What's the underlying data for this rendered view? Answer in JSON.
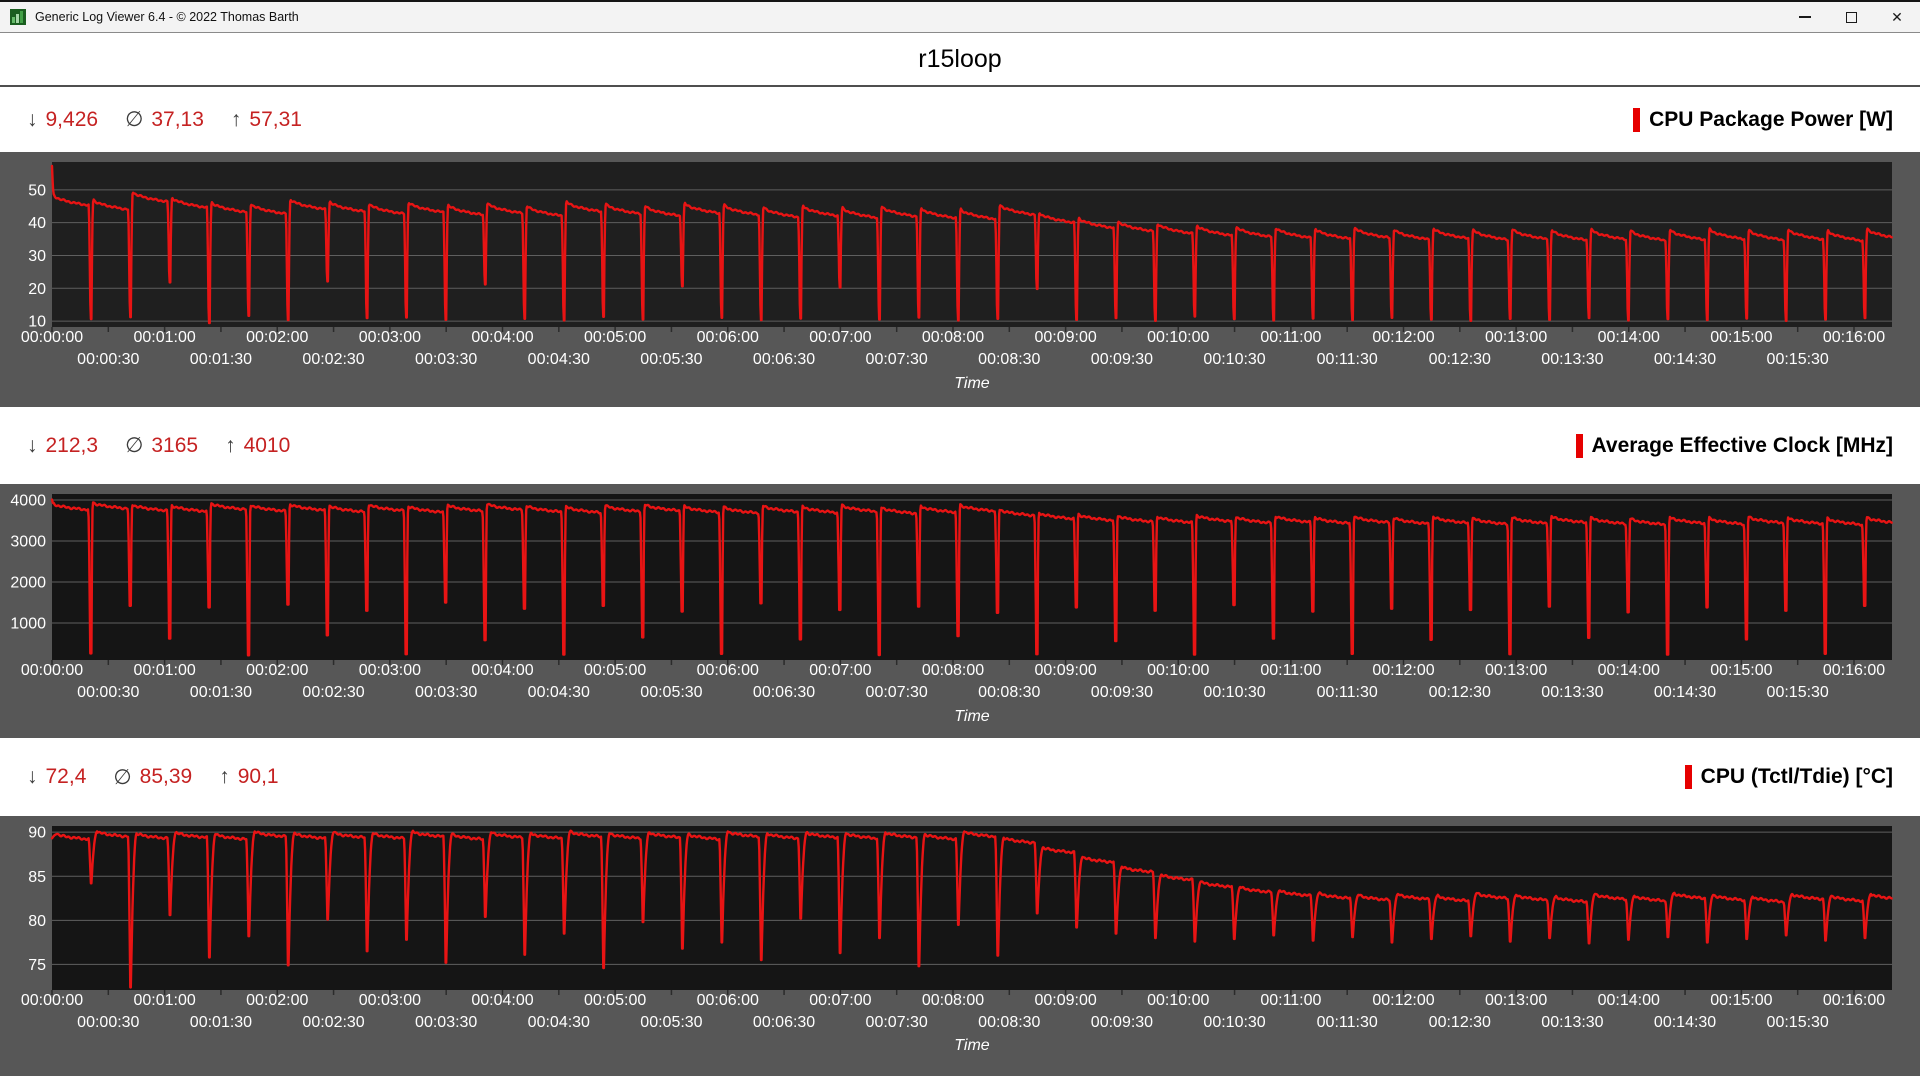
{
  "window": {
    "title": "Generic Log Viewer 6.4 - © 2022 Thomas Barth",
    "controls": {
      "minimize": "minimize",
      "maximize": "maximize",
      "close_glyph": "✕"
    }
  },
  "page": {
    "title": "r15loop"
  },
  "symbols": {
    "min": "↓",
    "avg": "∅",
    "max": "↑"
  },
  "colors": {
    "chart_line_red": "#e81414",
    "stat_value_red": "#c52222",
    "label_bar_red": "#e60000"
  },
  "charts": [
    {
      "label": "CPU Package Power [W]",
      "accent": "#e60000",
      "stats": {
        "min": "9,426",
        "avg": "37,13",
        "max": "57,31"
      },
      "chart_data": {
        "type": "line",
        "title": "CPU Package Power [W]",
        "xlabel": "Time",
        "series_color": "#e81414",
        "ylim": [
          8.2,
          58.5
        ],
        "y_gridlines": [
          50,
          40,
          30,
          20,
          10
        ],
        "x_span_s": 980,
        "x_tick_interval_s": 30,
        "x_label_interval_s": 60,
        "x_labels_row1": [
          "00:00:00",
          "00:01:00",
          "00:02:00",
          "00:03:00",
          "00:04:00",
          "00:05:00",
          "00:06:00",
          "00:07:00",
          "00:08:00",
          "00:09:00",
          "00:10:00",
          "00:11:00",
          "00:12:00",
          "00:13:00",
          "00:14:00",
          "00:15:00",
          "00:16:00"
        ],
        "x_labels_row2": [
          "00:00:30",
          "00:01:30",
          "00:02:30",
          "00:03:30",
          "00:04:30",
          "00:05:30",
          "00:06:30",
          "00:07:30",
          "00:08:30",
          "00:09:30",
          "00:10:30",
          "00:11:30",
          "00:12:30",
          "00:13:30",
          "00:14:30",
          "00:15:30"
        ],
        "stats_values": {
          "min": 9.426,
          "avg": 37.13,
          "max": 57.31
        },
        "pattern": {
          "period_s": 21,
          "rise_s": 1.1,
          "fall_s": 0.9,
          "hold_s": 0.5,
          "plateau_decay": 3.2,
          "noise": 0.3,
          "start_value": 57.3
        },
        "cycles": {
          "peaks": [
            48.5,
            47.2,
            49.6,
            47.8,
            46.4,
            45.9,
            47.3,
            46.6,
            45.9,
            46.4,
            45.6,
            46.1,
            45.3,
            46.6,
            45.9,
            45.3,
            46.1,
            45.6,
            44.9,
            45.3,
            44.7,
            45.1,
            44.6,
            44.3,
            45.6,
            43.2,
            41.6,
            40.6,
            39.9,
            39.3,
            38.9,
            38.6,
            38.3,
            38.6,
            38.1,
            38.4,
            38.0,
            38.2,
            37.9,
            38.1,
            37.8,
            38.0,
            38.2,
            37.9,
            38.1,
            37.7,
            38.3
          ],
          "dips": [
            10.6,
            11.2,
            21.8,
            9.4,
            11.6,
            10.3,
            22.1,
            10.9,
            11.1,
            10.4,
            21.2,
            10.7,
            10.2,
            11.3,
            10.5,
            20.6,
            11.0,
            10.3,
            10.8,
            20.2,
            10.5,
            11.1,
            10.2,
            10.7,
            19.8,
            10.4,
            10.9,
            10.1,
            11.4,
            10.6,
            10.2,
            10.8,
            10.3,
            11.0,
            10.5,
            10.1,
            10.7,
            10.4,
            10.9,
            10.2,
            10.6,
            10.3,
            10.8,
            10.1,
            10.5,
            10.9,
            10.4
          ]
        }
      }
    },
    {
      "label": "Average Effective Clock [MHz]",
      "accent": "#e60000",
      "stats": {
        "min": "212,3",
        "avg": "3165",
        "max": "4010"
      },
      "chart_data": {
        "type": "line",
        "title": "Average Effective Clock [MHz]",
        "xlabel": "Time",
        "series_color": "#e81414",
        "ylim": [
          98,
          4146
        ],
        "y_gridlines": [
          4000,
          3000,
          2000,
          1000
        ],
        "x_span_s": 980,
        "x_tick_interval_s": 30,
        "x_label_interval_s": 60,
        "x_labels_row1": [
          "00:00:00",
          "00:01:00",
          "00:02:00",
          "00:03:00",
          "00:04:00",
          "00:05:00",
          "00:06:00",
          "00:07:00",
          "00:08:00",
          "00:09:00",
          "00:10:00",
          "00:11:00",
          "00:12:00",
          "00:13:00",
          "00:14:00",
          "00:15:00",
          "00:16:00"
        ],
        "x_labels_row2": [
          "00:00:30",
          "00:01:30",
          "00:02:30",
          "00:03:30",
          "00:04:30",
          "00:05:30",
          "00:06:30",
          "00:07:30",
          "00:08:30",
          "00:09:30",
          "00:10:30",
          "00:11:30",
          "00:12:30",
          "00:13:30",
          "00:14:30",
          "00:15:30"
        ],
        "stats_values": {
          "min": 212.3,
          "avg": 3165,
          "max": 4010
        },
        "pattern": {
          "period_s": 21,
          "rise_s": 0.8,
          "fall_s": 1.0,
          "hold_s": 0.6,
          "plateau_decay": 160,
          "noise": 28,
          "start_value": 4010
        },
        "cycles": {
          "peaks": [
            3920,
            3950,
            3900,
            3880,
            3930,
            3890,
            3910,
            3870,
            3900,
            3860,
            3890,
            3920,
            3870,
            3850,
            3880,
            3900,
            3860,
            3840,
            3870,
            3850,
            3880,
            3830,
            3860,
            3890,
            3780,
            3700,
            3660,
            3630,
            3610,
            3640,
            3600,
            3620,
            3590,
            3610,
            3580,
            3600,
            3570,
            3590,
            3610,
            3580,
            3560,
            3590,
            3570,
            3600,
            3580,
            3560,
            3590
          ],
          "dips": [
            260,
            1420,
            620,
            1380,
            212,
            1450,
            700,
            1300,
            240,
            1500,
            580,
            1350,
            230,
            1420,
            650,
            1280,
            250,
            1480,
            600,
            1320,
            220,
            1400,
            680,
            1250,
            240,
            1380,
            560,
            1300,
            230,
            1440,
            620,
            1280,
            250,
            1350,
            590,
            1320,
            240,
            1400,
            640,
            1260,
            230,
            1380,
            600,
            1300,
            250,
            1420,
            580
          ]
        }
      }
    },
    {
      "label": "CPU (Tctl/Tdie) [°C]",
      "accent": "#e60000",
      "stats": {
        "min": "72,4",
        "avg": "85,39",
        "max": "90,1"
      },
      "chart_data": {
        "type": "line",
        "title": "CPU (Tctl/Tdie) [°C]",
        "xlabel": "Time",
        "series_color": "#e81414",
        "ylim": [
          72.1,
          90.7
        ],
        "y_gridlines": [
          90,
          85,
          80,
          75
        ],
        "x_span_s": 980,
        "x_tick_interval_s": 30,
        "x_label_interval_s": 60,
        "x_labels_row1": [
          "00:00:00",
          "00:01:00",
          "00:02:00",
          "00:03:00",
          "00:04:00",
          "00:05:00",
          "00:06:00",
          "00:07:00",
          "00:08:00",
          "00:09:00",
          "00:10:00",
          "00:11:00",
          "00:12:00",
          "00:13:00",
          "00:14:00",
          "00:15:00",
          "00:16:00"
        ],
        "x_labels_row2": [
          "00:00:30",
          "00:01:30",
          "00:02:30",
          "00:03:30",
          "00:04:30",
          "00:05:30",
          "00:06:30",
          "00:07:30",
          "00:08:30",
          "00:09:30",
          "00:10:30",
          "00:11:30",
          "00:12:30",
          "00:13:30",
          "00:14:30",
          "00:15:30"
        ],
        "stats_values": {
          "min": 72.4,
          "avg": 85.39,
          "max": 90.1
        },
        "pattern": {
          "period_s": 21,
          "rise_s": 3.2,
          "fall_s": 1.1,
          "hold_s": 0.3,
          "plateau_decay": 0.6,
          "noise": 0.14,
          "start_value": 89.3
        },
        "cycles": {
          "peaks": [
            89.8,
            90.1,
            89.9,
            90.0,
            89.8,
            90.1,
            89.9,
            90.0,
            89.9,
            90.1,
            89.8,
            90.0,
            89.9,
            90.1,
            89.9,
            90.0,
            89.8,
            90.1,
            89.9,
            90.0,
            89.9,
            90.0,
            89.8,
            90.1,
            89.4,
            88.3,
            87.2,
            86.1,
            85.2,
            84.4,
            83.8,
            83.4,
            83.1,
            82.9,
            83.0,
            82.8,
            83.1,
            82.9,
            82.7,
            83.0,
            82.8,
            83.1,
            82.9,
            82.7,
            83.0,
            82.8,
            83.0
          ],
          "dips": [
            84.2,
            72.4,
            80.6,
            75.8,
            78.2,
            74.9,
            80.1,
            76.5,
            77.8,
            75.2,
            80.4,
            76.1,
            78.5,
            74.6,
            79.8,
            76.8,
            77.5,
            75.5,
            80.2,
            76.3,
            78.0,
            74.8,
            79.5,
            76.0,
            80.8,
            79.2,
            78.5,
            78.0,
            77.6,
            77.9,
            78.3,
            77.7,
            78.1,
            77.5,
            77.9,
            78.2,
            77.6,
            78.0,
            77.4,
            77.8,
            78.1,
            77.5,
            77.9,
            78.3,
            77.7,
            78.0,
            77.6
          ]
        }
      }
    }
  ]
}
